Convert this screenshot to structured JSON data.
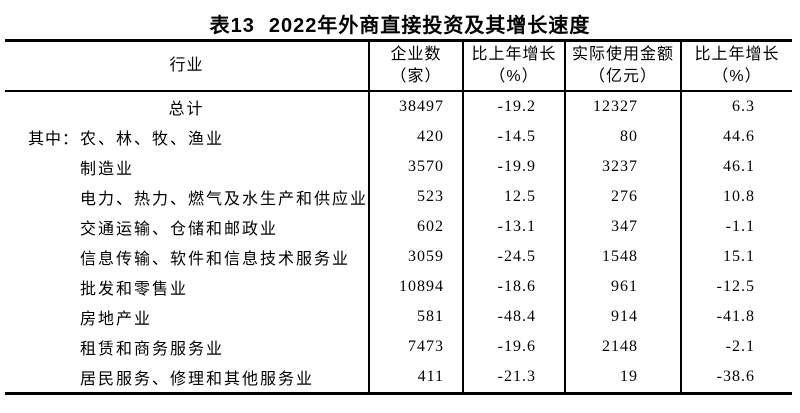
{
  "title": {
    "prefix": "表13",
    "text": "2022年外商直接投资及其增长速度"
  },
  "table": {
    "industry_header": "行业",
    "columns": [
      {
        "line1": "企业数",
        "line2": "（家）"
      },
      {
        "line1": "比上年增长",
        "line2": "（%）"
      },
      {
        "line1": "实际使用金额",
        "line2": "（亿元）"
      },
      {
        "line1": "比上年增长",
        "line2": "（%）"
      }
    ],
    "rows": [
      {
        "label": "总计",
        "values": [
          "38497",
          "-19.2",
          "12327",
          "6.3"
        ]
      },
      {
        "prefix": "其中：",
        "label": "农、林、牧、渔业",
        "values": [
          "420",
          "-14.5",
          "80",
          "44.6"
        ]
      },
      {
        "label": "制造业",
        "values": [
          "3570",
          "-19.9",
          "3237",
          "46.1"
        ]
      },
      {
        "label": "电力、热力、燃气及水生产和供应业",
        "values": [
          "523",
          "12.5",
          "276",
          "10.8"
        ]
      },
      {
        "label": "交通运输、仓储和邮政业",
        "values": [
          "602",
          "-13.1",
          "347",
          "-1.1"
        ]
      },
      {
        "label": "信息传输、软件和信息技术服务业",
        "values": [
          "3059",
          "-24.5",
          "1548",
          "15.1"
        ]
      },
      {
        "label": "批发和零售业",
        "values": [
          "10894",
          "-18.6",
          "961",
          "-12.5"
        ]
      },
      {
        "label": "房地产业",
        "values": [
          "581",
          "-48.4",
          "914",
          "-41.8"
        ]
      },
      {
        "label": "租赁和商务服务业",
        "values": [
          "7473",
          "-19.6",
          "2148",
          "-2.1"
        ]
      },
      {
        "label": "居民服务、修理和其他服务业",
        "values": [
          "411",
          "-21.3",
          "19",
          "-38.6"
        ]
      }
    ]
  }
}
